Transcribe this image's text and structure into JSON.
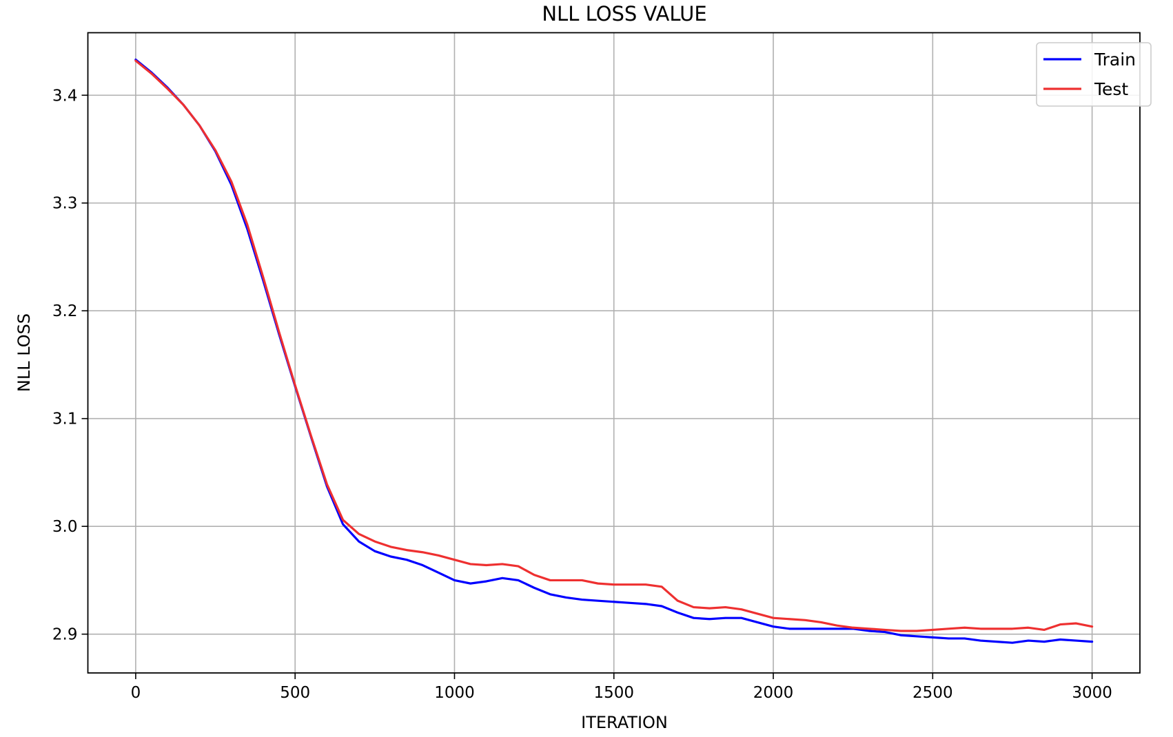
{
  "chart_data": {
    "type": "line",
    "title": "NLL LOSS VALUE",
    "xlabel": "ITERATION",
    "ylabel": "NLL LOSS",
    "xlim": [
      -150,
      3150
    ],
    "ylim": [
      2.864,
      3.458
    ],
    "x_ticks": [
      0,
      500,
      1000,
      1500,
      2000,
      2500,
      3000
    ],
    "y_ticks": [
      2.9,
      3.0,
      3.1,
      3.2,
      3.3,
      3.4
    ],
    "x_tick_labels": [
      "0",
      "500",
      "1000",
      "1500",
      "2000",
      "2500",
      "3000"
    ],
    "y_tick_labels": [
      "2.9",
      "3.0",
      "3.1",
      "3.2",
      "3.3",
      "3.4"
    ],
    "grid": true,
    "legend_position": "top-right",
    "x": [
      0,
      50,
      100,
      150,
      200,
      250,
      300,
      350,
      400,
      450,
      500,
      550,
      600,
      650,
      700,
      750,
      800,
      850,
      900,
      950,
      1000,
      1050,
      1100,
      1150,
      1200,
      1250,
      1300,
      1350,
      1400,
      1450,
      1500,
      1550,
      1600,
      1650,
      1700,
      1750,
      1800,
      1850,
      1900,
      1950,
      2000,
      2050,
      2100,
      2150,
      2200,
      2250,
      2300,
      2350,
      2400,
      2450,
      2500,
      2550,
      2600,
      2650,
      2700,
      2750,
      2800,
      2850,
      2900,
      2950,
      3000
    ],
    "series": [
      {
        "name": "Train",
        "color": "#0000ff",
        "values": [
          3.433,
          3.421,
          3.407,
          3.391,
          3.372,
          3.348,
          3.317,
          3.276,
          3.228,
          3.178,
          3.13,
          3.083,
          3.037,
          3.002,
          2.986,
          2.977,
          2.972,
          2.969,
          2.964,
          2.957,
          2.95,
          2.947,
          2.949,
          2.952,
          2.95,
          2.943,
          2.937,
          2.934,
          2.932,
          2.931,
          2.93,
          2.929,
          2.928,
          2.926,
          2.92,
          2.915,
          2.914,
          2.915,
          2.915,
          2.911,
          2.907,
          2.905,
          2.905,
          2.905,
          2.905,
          2.905,
          2.903,
          2.902,
          2.899,
          2.898,
          2.897,
          2.896,
          2.896,
          2.894,
          2.893,
          2.892,
          2.894,
          2.893,
          2.895,
          2.894,
          2.893
        ]
      },
      {
        "name": "Test",
        "color": "#ee3030",
        "values": [
          3.432,
          3.42,
          3.406,
          3.391,
          3.372,
          3.349,
          3.32,
          3.28,
          3.231,
          3.18,
          3.131,
          3.084,
          3.039,
          3.006,
          2.993,
          2.986,
          2.981,
          2.978,
          2.976,
          2.973,
          2.969,
          2.965,
          2.964,
          2.965,
          2.963,
          2.955,
          2.95,
          2.95,
          2.95,
          2.947,
          2.946,
          2.946,
          2.946,
          2.944,
          2.931,
          2.925,
          2.924,
          2.925,
          2.923,
          2.919,
          2.915,
          2.914,
          2.913,
          2.911,
          2.908,
          2.906,
          2.905,
          2.904,
          2.903,
          2.903,
          2.904,
          2.905,
          2.906,
          2.905,
          2.905,
          2.905,
          2.906,
          2.904,
          2.909,
          2.91,
          2.907
        ]
      }
    ]
  }
}
